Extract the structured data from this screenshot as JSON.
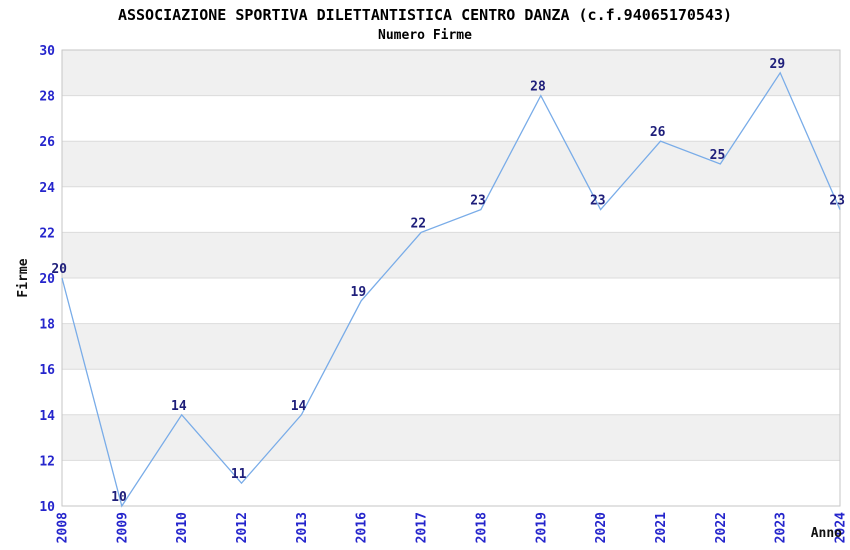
{
  "chart_data": {
    "type": "line",
    "title": "ASSOCIAZIONE SPORTIVA DILETTANTISTICA CENTRO DANZA (c.f.94065170543)",
    "subtitle": "Numero Firme",
    "xlabel": "Anno",
    "ylabel": "Firme",
    "categories": [
      "2008",
      "2009",
      "2010",
      "2012",
      "2013",
      "2016",
      "2017",
      "2018",
      "2019",
      "2020",
      "2021",
      "2022",
      "2023",
      "2024"
    ],
    "values": [
      20,
      10,
      14,
      11,
      14,
      19,
      22,
      23,
      28,
      23,
      26,
      25,
      29,
      23
    ],
    "point_labels": [
      "20",
      "10",
      "14",
      "11",
      "14",
      "19",
      "22",
      "23",
      "28",
      "23",
      "26",
      "25",
      "29",
      "23"
    ],
    "ylim": [
      10,
      30
    ],
    "ytick_step": 2,
    "ytick_labels": [
      "10",
      "12",
      "14",
      "16",
      "18",
      "20",
      "22",
      "24",
      "26",
      "28",
      "30"
    ],
    "grid": "alternating-horizontal-bands",
    "legend": "none",
    "x_tick_rotation": 90,
    "colors": {
      "line": "#79ACE8",
      "tick_label": "#2525CC",
      "point_label": "#1E1E7A",
      "band_fill": "#F0F0F0",
      "band_edge": "#DBDBDB",
      "plot_border": "#C6C6C6",
      "title": "#000000",
      "axis_title": "#111111",
      "background": "#FFFFFF"
    }
  }
}
